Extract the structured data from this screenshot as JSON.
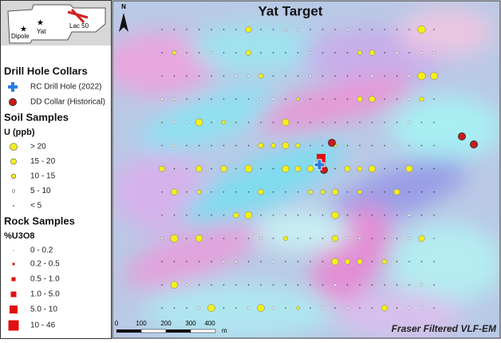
{
  "title": "Yat Target",
  "inset": {
    "labels": [
      "Dipole",
      "Yat",
      "Lac 50"
    ]
  },
  "north": "N",
  "legend": {
    "drill_title": "Drill Hole Collars",
    "drill_items": [
      "RC Drill Hole (2022)",
      "DD Collar (Historical)"
    ],
    "soil_title": "Soil Samples",
    "soil_unit": "U (ppb)",
    "soil_items": [
      "> 20",
      "15 - 20",
      "10 - 15",
      "5 - 10",
      "< 5"
    ],
    "rock_title": "Rock Samples",
    "rock_unit": "%U3O8",
    "rock_items": [
      "0 - 0.2",
      "0.2 - 0.5",
      "0.5 - 1.0",
      "1.0 - 5.0",
      "5.0 - 10",
      "10 - 46"
    ]
  },
  "scale_bar": {
    "labels": [
      "0",
      "100",
      "200",
      "300",
      "400"
    ],
    "unit": "m"
  },
  "footer": "Fraser Filtered VLF-EM"
}
